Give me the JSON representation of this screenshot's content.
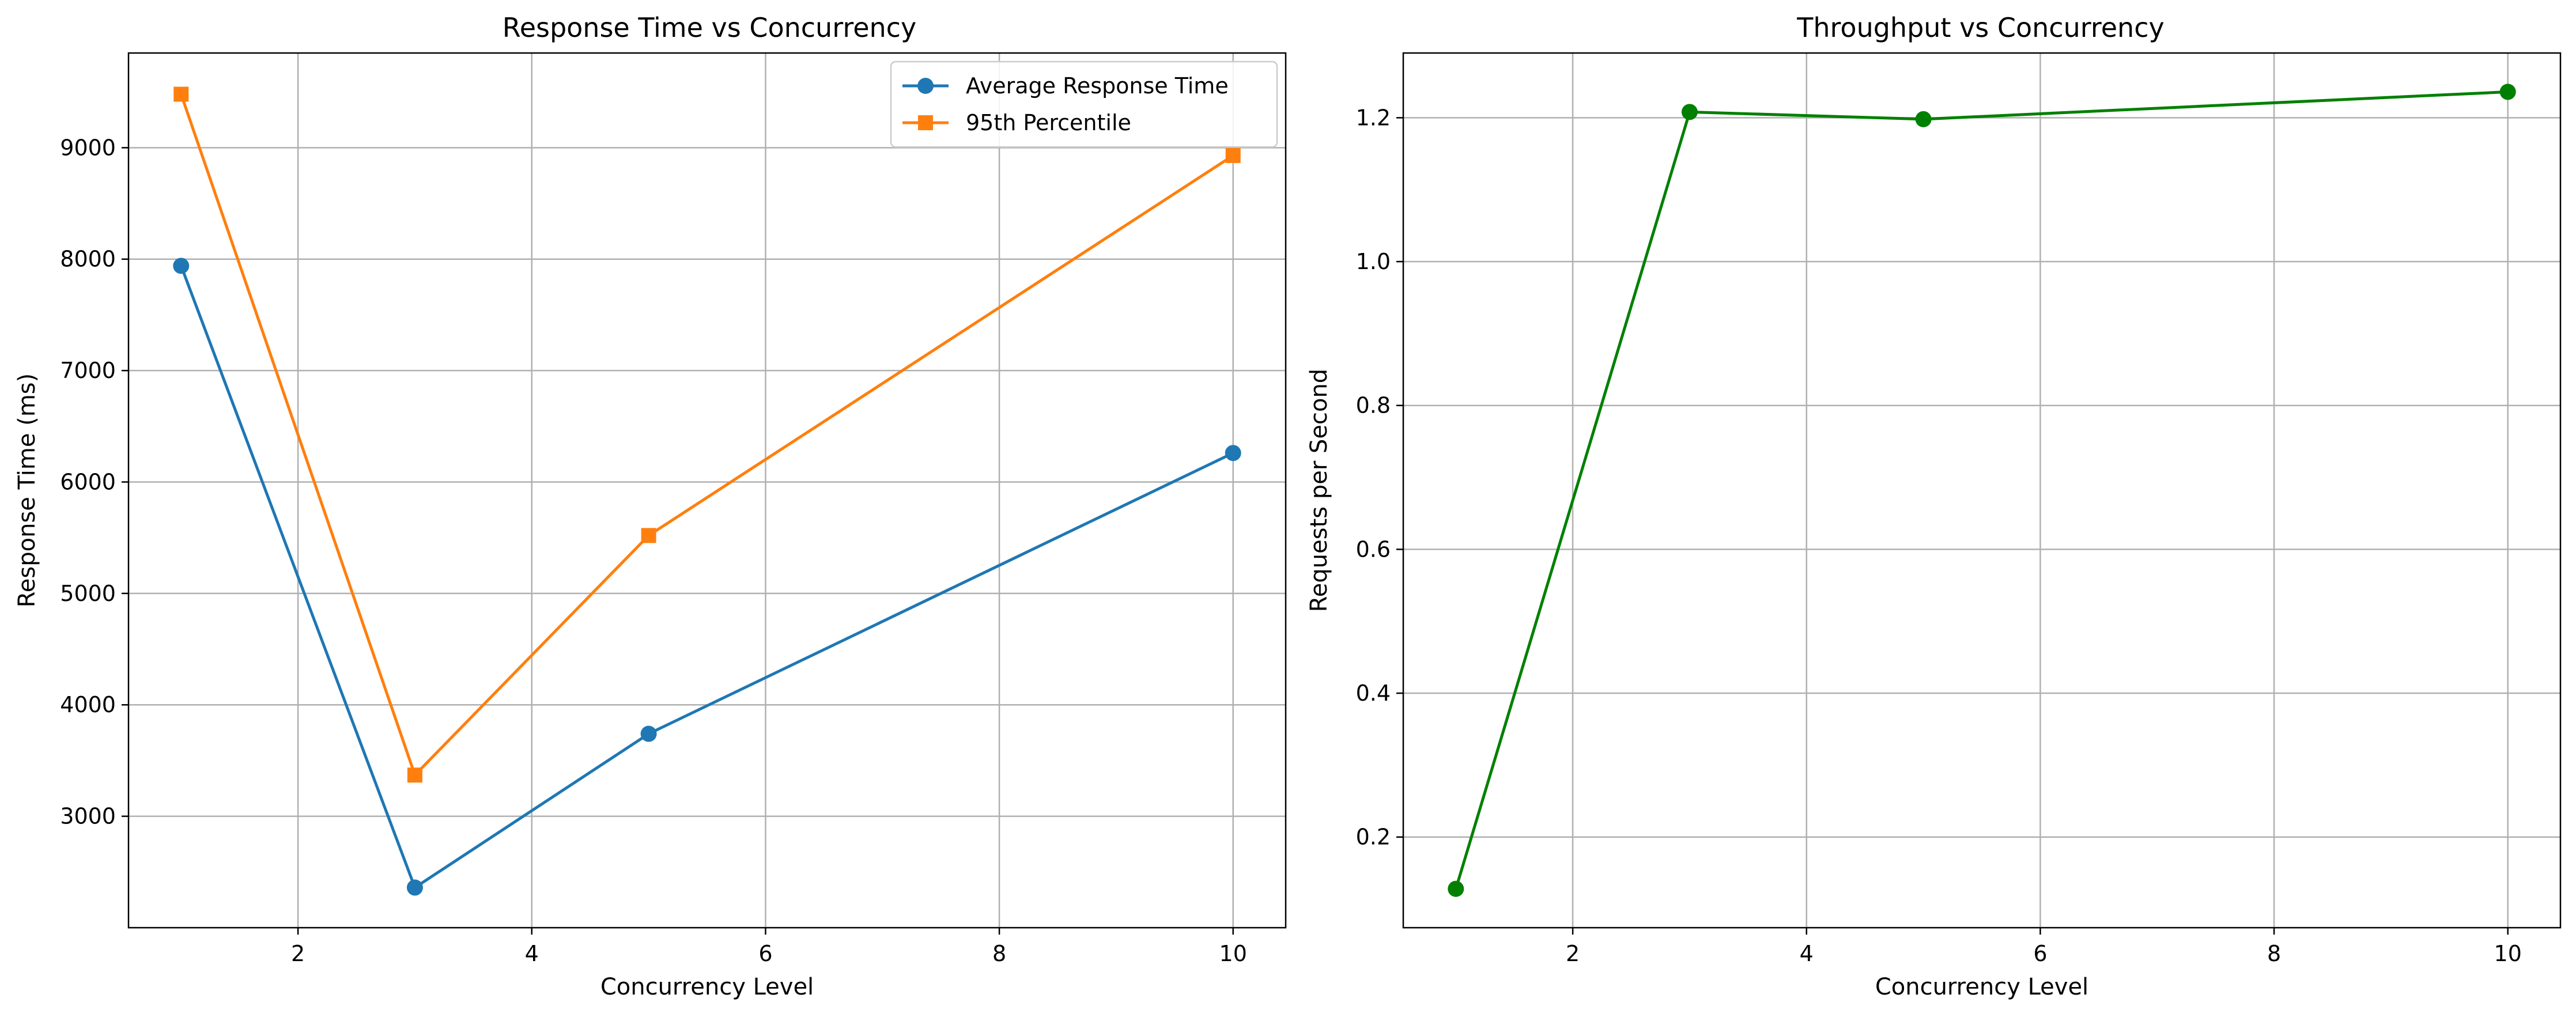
{
  "chart_data": [
    {
      "type": "line",
      "title": "Response Time vs Concurrency",
      "xlabel": "Concurrency Level",
      "ylabel": "Response Time (ms)",
      "xlim": [
        0.55,
        10.45
      ],
      "ylim": [
        2000,
        9850
      ],
      "xticks": [
        2,
        4,
        6,
        8,
        10
      ],
      "yticks": [
        3000,
        4000,
        5000,
        6000,
        7000,
        8000,
        9000
      ],
      "grid": true,
      "legend": "top-right",
      "x": [
        1,
        3,
        5,
        10
      ],
      "series": [
        {
          "name": "Average Response Time",
          "values": [
            7940,
            2360,
            3740,
            6260
          ],
          "color": "#1f77b4",
          "marker": "circle"
        },
        {
          "name": "95th Percentile",
          "values": [
            9480,
            3370,
            5520,
            8930
          ],
          "color": "#ff7f0e",
          "marker": "square"
        }
      ]
    },
    {
      "type": "line",
      "title": "Throughput vs Concurrency",
      "xlabel": "Concurrency Level",
      "ylabel": "Requests per Second",
      "xlim": [
        0.55,
        10.45
      ],
      "ylim": [
        0.074,
        1.29
      ],
      "xticks": [
        2,
        4,
        6,
        8,
        10
      ],
      "yticks": [
        0.2,
        0.4,
        0.6,
        0.8,
        1.0,
        1.2
      ],
      "ytick_labels": [
        "0.2",
        "0.4",
        "0.6",
        "0.8",
        "1.0",
        "1.2"
      ],
      "grid": true,
      "legend": "none",
      "x": [
        1,
        3,
        5,
        10
      ],
      "series": [
        {
          "values": [
            0.128,
            1.208,
            1.198,
            1.236
          ],
          "color": "#008000",
          "marker": "circle"
        }
      ]
    }
  ]
}
